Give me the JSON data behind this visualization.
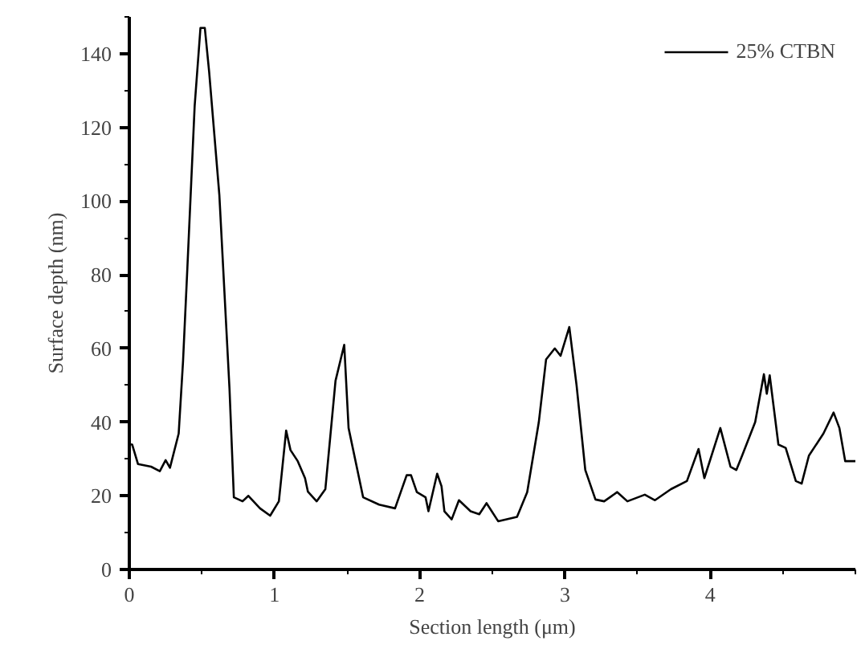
{
  "chart_data": {
    "type": "line",
    "xlabel": "Section length (μm)",
    "ylabel": "Surface depth (nm)",
    "xlim": [
      0,
      5.0
    ],
    "ylim": [
      0,
      150
    ],
    "xticks": [
      0,
      1,
      2,
      3,
      4
    ],
    "yticks": [
      0,
      20,
      40,
      60,
      80,
      100,
      120,
      140
    ],
    "grid": false,
    "legend": "top right",
    "marker": "none",
    "line_style": "solid",
    "series": [
      {
        "name": "25% CTBN",
        "color": "#000000",
        "x": [
          0,
          0.02,
          0.06,
          0.15,
          0.21,
          0.25,
          0.28,
          0.34,
          0.37,
          0.4,
          0.45,
          0.49,
          0.52,
          0.55,
          0.62,
          0.69,
          0.72,
          0.78,
          0.82,
          0.9,
          0.97,
          1.03,
          1.08,
          1.11,
          1.16,
          1.21,
          1.23,
          1.29,
          1.35,
          1.42,
          1.48,
          1.51,
          1.61,
          1.72,
          1.83,
          1.91,
          1.94,
          1.98,
          2.04,
          2.06,
          2.12,
          2.15,
          2.17,
          2.22,
          2.27,
          2.35,
          2.41,
          2.46,
          2.54,
          2.67,
          2.74,
          2.82,
          2.87,
          2.93,
          2.97,
          3.03,
          3.08,
          3.14,
          3.21,
          3.27,
          3.36,
          3.43,
          3.55,
          3.62,
          3.73,
          3.84,
          3.92,
          3.96,
          4.07,
          4.14,
          4.18,
          4.22,
          4.31,
          4.37,
          4.39,
          4.41,
          4.47,
          4.52,
          4.59,
          4.63,
          4.68,
          4.78,
          4.85,
          4.89,
          4.93,
          5.0
        ],
        "values": [
          34,
          33.9,
          28.6,
          27.9,
          26.7,
          29.7,
          27.6,
          36.9,
          56.5,
          82,
          125.8,
          147,
          147,
          135,
          101.7,
          49,
          19.6,
          18.5,
          20,
          16.6,
          14.6,
          18.5,
          37.7,
          32.4,
          29.4,
          24.8,
          21.1,
          18.5,
          21.8,
          51.2,
          61,
          38.4,
          19.6,
          17.6,
          16.6,
          25.6,
          25.6,
          21,
          19.6,
          15.8,
          26,
          22.6,
          15.8,
          13.6,
          18.8,
          15.8,
          15,
          18,
          13.1,
          14.3,
          21,
          40,
          57,
          60,
          58,
          65.8,
          50,
          27,
          19,
          18.5,
          21,
          18.5,
          20.3,
          18.8,
          21.8,
          24,
          32.7,
          24.8,
          38.4,
          27.9,
          27,
          30.9,
          40,
          53,
          47.7,
          52.7,
          33.9,
          33,
          24,
          23.3,
          30.9,
          36.9,
          42.6,
          38.4,
          29.4,
          29.4
        ]
      }
    ]
  }
}
